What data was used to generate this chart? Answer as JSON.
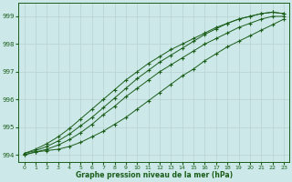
{
  "xlabel": "Graphe pression niveau de la mer (hPa)",
  "background_color": "#cde8e8",
  "grid_color": "#b8d0d0",
  "line_color": "#1a5e1a",
  "ylim": [
    993.75,
    999.5
  ],
  "xlim": [
    -0.5,
    23.5
  ],
  "yticks": [
    994,
    995,
    996,
    997,
    998,
    999
  ],
  "xticks": [
    0,
    1,
    2,
    3,
    4,
    5,
    6,
    7,
    8,
    9,
    10,
    11,
    12,
    13,
    14,
    15,
    16,
    17,
    18,
    19,
    20,
    21,
    22,
    23
  ],
  "series": [
    [
      994.0,
      994.1,
      994.15,
      994.2,
      994.3,
      994.45,
      994.65,
      994.85,
      995.1,
      995.35,
      995.65,
      995.95,
      996.25,
      996.55,
      996.85,
      997.1,
      997.4,
      997.65,
      997.9,
      998.1,
      998.3,
      998.5,
      998.7,
      998.9
    ],
    [
      994.05,
      994.15,
      994.3,
      994.5,
      994.75,
      995.05,
      995.35,
      995.7,
      996.05,
      996.4,
      996.75,
      997.05,
      997.35,
      997.6,
      997.85,
      998.1,
      998.35,
      998.55,
      998.75,
      998.9,
      999.0,
      999.1,
      999.15,
      999.1
    ],
    [
      994.0,
      994.1,
      994.2,
      994.35,
      994.55,
      994.8,
      995.1,
      995.45,
      995.75,
      996.1,
      996.4,
      996.7,
      997.0,
      997.25,
      997.5,
      997.75,
      998.0,
      998.2,
      998.4,
      998.6,
      998.75,
      998.9,
      999.0,
      999.0
    ],
    [
      994.05,
      994.2,
      994.4,
      994.65,
      994.95,
      995.3,
      995.65,
      996.0,
      996.35,
      996.7,
      997.0,
      997.3,
      997.55,
      997.8,
      998.0,
      998.2,
      998.4,
      998.6,
      998.75,
      998.9,
      999.0,
      999.1,
      999.15,
      999.1
    ]
  ]
}
